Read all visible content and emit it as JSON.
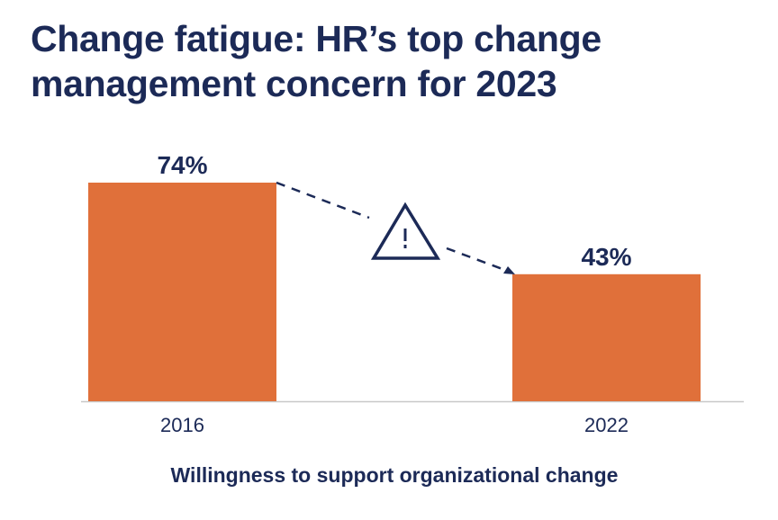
{
  "chart_data": {
    "type": "bar",
    "title": "Change fatigue: HR’s top change management concern for 2023",
    "categories": [
      "2016",
      "2022"
    ],
    "values": [
      74,
      43
    ],
    "data_labels": [
      "74%",
      "43%"
    ],
    "xlabel": "Willingness to support organizational change",
    "ylabel": "",
    "ylim": [
      0,
      100
    ],
    "grid": false,
    "annotation_icon": "warning-triangle-icon",
    "colors": {
      "bar": "#e0703a",
      "text": "#1c2a57",
      "axis": "#c8c8c8"
    }
  }
}
